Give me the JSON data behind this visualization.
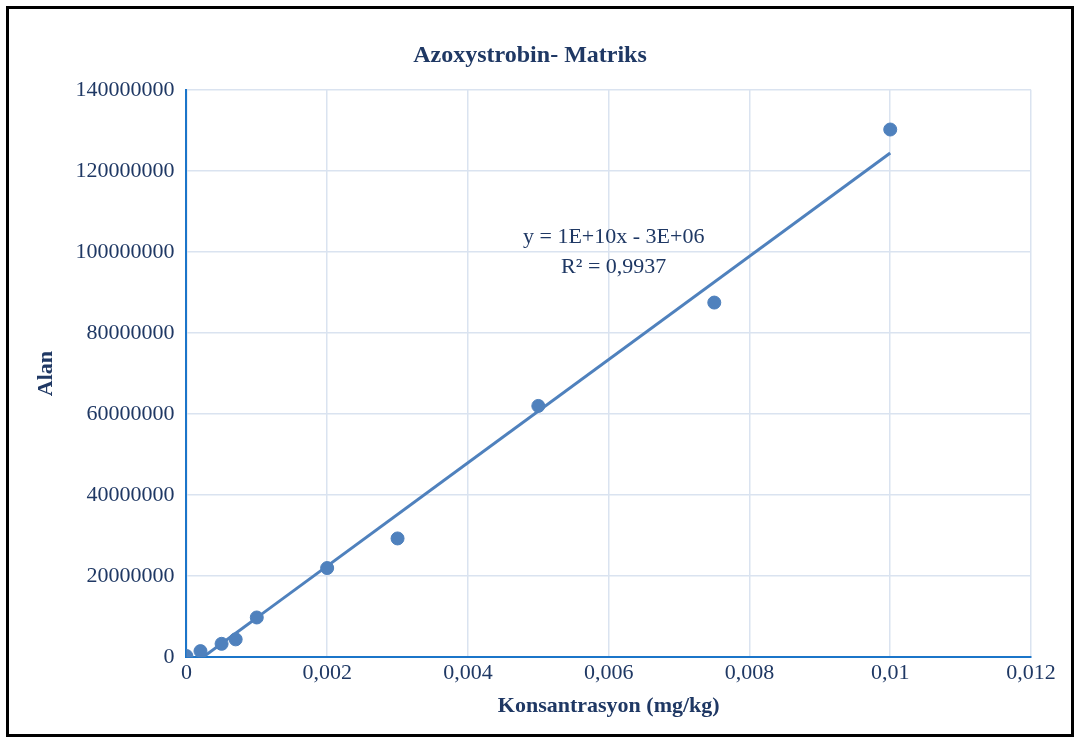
{
  "chart_data": {
    "type": "scatter",
    "title": "Azoxystrobin- Matriks",
    "xlabel": "Konsantrasyon (mg/kg)",
    "ylabel": "Alan",
    "series": [
      {
        "color": "#4f81bd",
        "marker": "circle",
        "x": [
          0,
          0.0002,
          0.0005,
          0.0007,
          0.001,
          0.002,
          0.003,
          0.005,
          0.0075,
          0.01
        ],
        "values": [
          300000,
          1500000,
          3300000,
          4400000,
          9800000,
          22000000,
          29300000,
          62000000,
          87500000,
          130200000
        ]
      },
      {
        "type": "line",
        "color": "#4f81bd",
        "marker": "none",
        "x": [
          0.000235,
          0.01
        ],
        "values": [
          0,
          124400000
        ]
      }
    ],
    "xlim": [
      0,
      0.012
    ],
    "xticks": [
      0,
      {
        "value": 0.002,
        "label": "0,002"
      },
      {
        "value": 0.004,
        "label": "0,004"
      },
      {
        "value": 0.006,
        "label": "0,006"
      },
      {
        "value": 0.008,
        "label": "0,008"
      },
      {
        "value": 0.01,
        "label": "0,01"
      },
      {
        "value": 0.012,
        "label": "0,012"
      }
    ],
    "ylim": [
      0,
      140000000
    ],
    "yticks": [
      0,
      20000000,
      40000000,
      60000000,
      80000000,
      100000000,
      120000000,
      140000000
    ],
    "annotations": [
      "y = 1E+10x - 3E+06",
      "R² = 0,9937"
    ],
    "grid": true,
    "legend": false,
    "line_style": "solid"
  }
}
